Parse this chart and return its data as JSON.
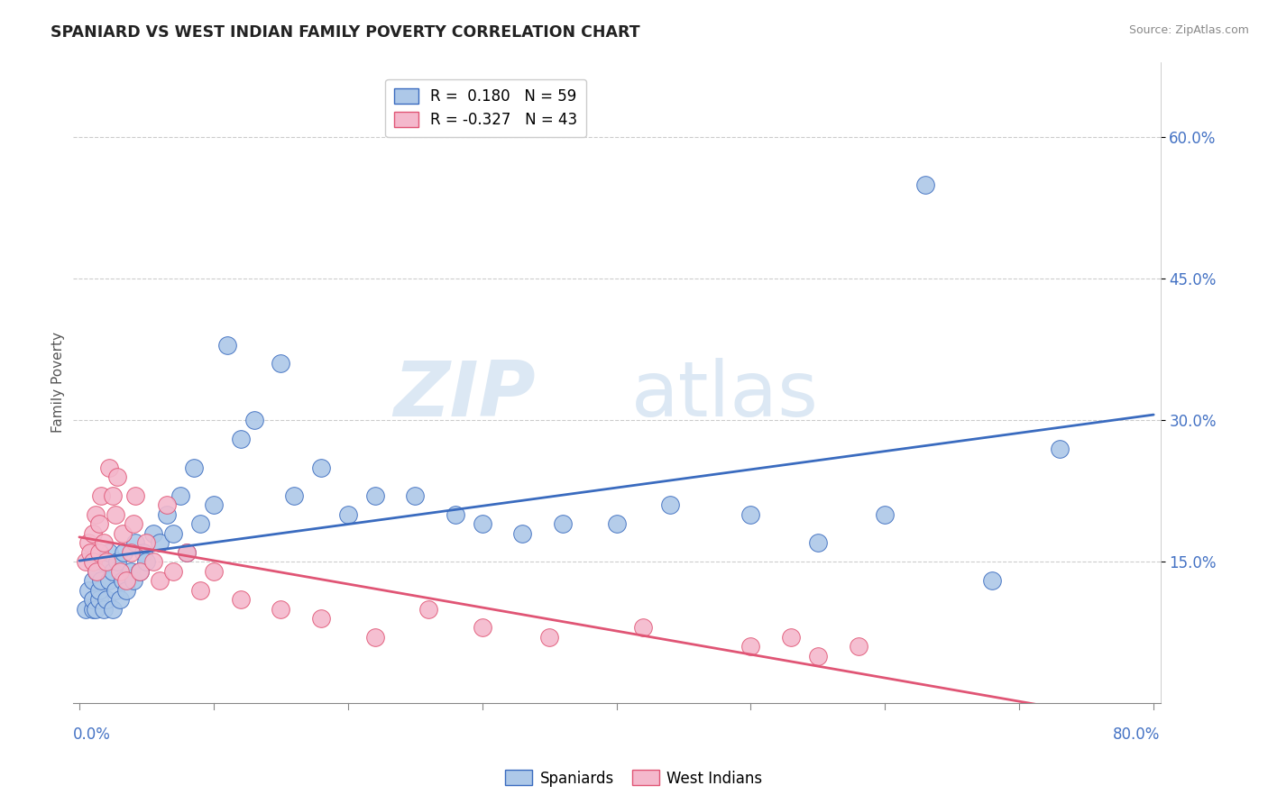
{
  "title": "SPANIARD VS WEST INDIAN FAMILY POVERTY CORRELATION CHART",
  "source": "Source: ZipAtlas.com",
  "ylabel": "Family Poverty",
  "ytick_labels": [
    "15.0%",
    "30.0%",
    "45.0%",
    "60.0%"
  ],
  "ytick_values": [
    0.15,
    0.3,
    0.45,
    0.6
  ],
  "xlim": [
    0.0,
    0.8
  ],
  "ylim": [
    0.0,
    0.68
  ],
  "spaniards_color": "#adc8e8",
  "west_indians_color": "#f4b8cc",
  "trend_spaniards_color": "#3a6bbf",
  "trend_west_indians_color": "#e05575",
  "watermark_zip": "ZIP",
  "watermark_atlas": "atlas",
  "legend_r1": "R =  0.180",
  "legend_n1": "N = 59",
  "legend_r2": "R = -0.327",
  "legend_n2": "N = 43",
  "sp_x": [
    0.005,
    0.007,
    0.01,
    0.01,
    0.01,
    0.012,
    0.013,
    0.015,
    0.015,
    0.016,
    0.018,
    0.018,
    0.02,
    0.022,
    0.022,
    0.025,
    0.025,
    0.027,
    0.028,
    0.03,
    0.032,
    0.033,
    0.035,
    0.038,
    0.04,
    0.042,
    0.045,
    0.048,
    0.05,
    0.055,
    0.06,
    0.065,
    0.07,
    0.075,
    0.08,
    0.085,
    0.09,
    0.1,
    0.11,
    0.12,
    0.13,
    0.15,
    0.16,
    0.18,
    0.2,
    0.22,
    0.25,
    0.28,
    0.3,
    0.33,
    0.36,
    0.4,
    0.44,
    0.5,
    0.55,
    0.6,
    0.63,
    0.68,
    0.73
  ],
  "sp_y": [
    0.1,
    0.12,
    0.1,
    0.11,
    0.13,
    0.1,
    0.14,
    0.11,
    0.12,
    0.13,
    0.1,
    0.15,
    0.11,
    0.13,
    0.16,
    0.1,
    0.14,
    0.12,
    0.15,
    0.11,
    0.13,
    0.16,
    0.12,
    0.14,
    0.13,
    0.17,
    0.14,
    0.16,
    0.15,
    0.18,
    0.17,
    0.2,
    0.18,
    0.22,
    0.16,
    0.25,
    0.19,
    0.21,
    0.38,
    0.28,
    0.3,
    0.36,
    0.22,
    0.25,
    0.2,
    0.22,
    0.22,
    0.2,
    0.19,
    0.18,
    0.19,
    0.19,
    0.21,
    0.2,
    0.17,
    0.2,
    0.55,
    0.13,
    0.27
  ],
  "wi_x": [
    0.005,
    0.007,
    0.008,
    0.01,
    0.01,
    0.012,
    0.013,
    0.015,
    0.015,
    0.016,
    0.018,
    0.02,
    0.022,
    0.025,
    0.027,
    0.028,
    0.03,
    0.032,
    0.035,
    0.038,
    0.04,
    0.042,
    0.045,
    0.05,
    0.055,
    0.06,
    0.065,
    0.07,
    0.08,
    0.09,
    0.1,
    0.12,
    0.15,
    0.18,
    0.22,
    0.26,
    0.3,
    0.35,
    0.42,
    0.5,
    0.53,
    0.55,
    0.58
  ],
  "wi_y": [
    0.15,
    0.17,
    0.16,
    0.15,
    0.18,
    0.2,
    0.14,
    0.16,
    0.19,
    0.22,
    0.17,
    0.15,
    0.25,
    0.22,
    0.2,
    0.24,
    0.14,
    0.18,
    0.13,
    0.16,
    0.19,
    0.22,
    0.14,
    0.17,
    0.15,
    0.13,
    0.21,
    0.14,
    0.16,
    0.12,
    0.14,
    0.11,
    0.1,
    0.09,
    0.07,
    0.1,
    0.08,
    0.07,
    0.08,
    0.06,
    0.07,
    0.05,
    0.06
  ]
}
